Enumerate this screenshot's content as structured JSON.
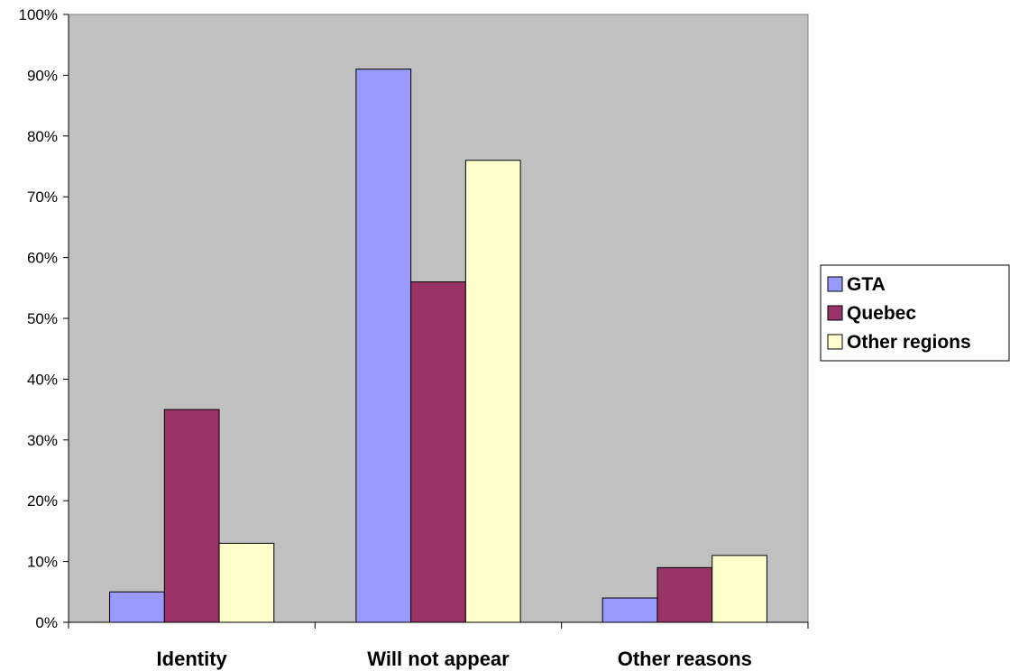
{
  "chart_data": {
    "type": "bar",
    "categories": [
      "Identity",
      "Will not appear",
      "Other reasons"
    ],
    "series": [
      {
        "name": "GTA",
        "color": "#9999ff",
        "values": [
          5,
          91,
          4
        ]
      },
      {
        "name": "Quebec",
        "color": "#993366",
        "values": [
          35,
          56,
          9
        ]
      },
      {
        "name": "Other regions",
        "color": "#ffffcc",
        "values": [
          13,
          76,
          11
        ]
      }
    ],
    "ylim": [
      0,
      100
    ],
    "yticks": [
      "0%",
      "10%",
      "20%",
      "30%",
      "40%",
      "50%",
      "60%",
      "70%",
      "80%",
      "90%",
      "100%"
    ],
    "plot_background": "#c0c0c0",
    "grid": false,
    "legend_position": "right"
  }
}
